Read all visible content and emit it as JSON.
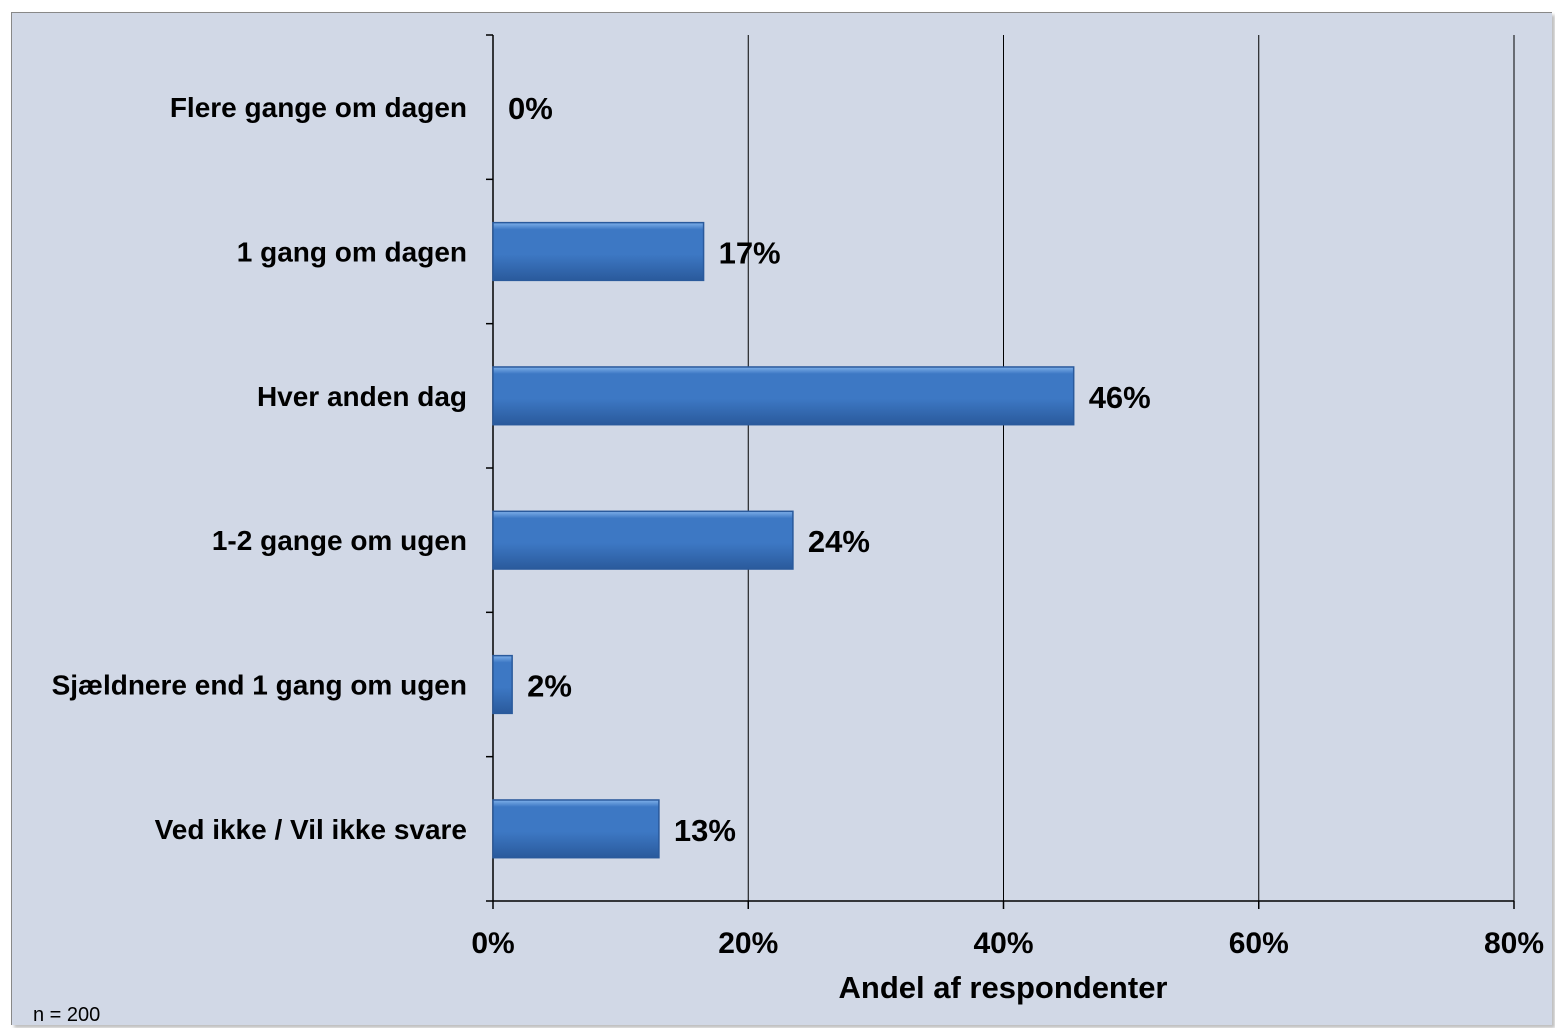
{
  "chart_data": {
    "type": "bar",
    "orientation": "horizontal",
    "categories": [
      "Flere gange om dagen",
      "1 gang om dagen",
      "Hver anden dag",
      "1-2 gange om ugen",
      "Sjældnere end 1 gang om ugen",
      "Ved ikke / Vil ikke svare"
    ],
    "values": [
      0,
      16.5,
      45.5,
      23.5,
      1.5,
      13
    ],
    "value_labels": [
      "0%",
      "17%",
      "46%",
      "24%",
      "2%",
      "13%"
    ],
    "xlim": [
      0,
      80
    ],
    "x_ticks": [
      0,
      20,
      40,
      60,
      80
    ],
    "x_tick_labels": [
      "0%",
      "20%",
      "40%",
      "60%",
      "80%"
    ],
    "xlabel": "Andel af respondenter",
    "ylabel": "",
    "title": "",
    "grid": "vertical",
    "legend": "none",
    "note": "n = 200",
    "colors": {
      "bar": "#3d78c4",
      "bar_dark": "#2a5a9c",
      "bar_light": "#7fb0ea",
      "background": "#d1d8e6",
      "gridline": "#000000"
    }
  }
}
